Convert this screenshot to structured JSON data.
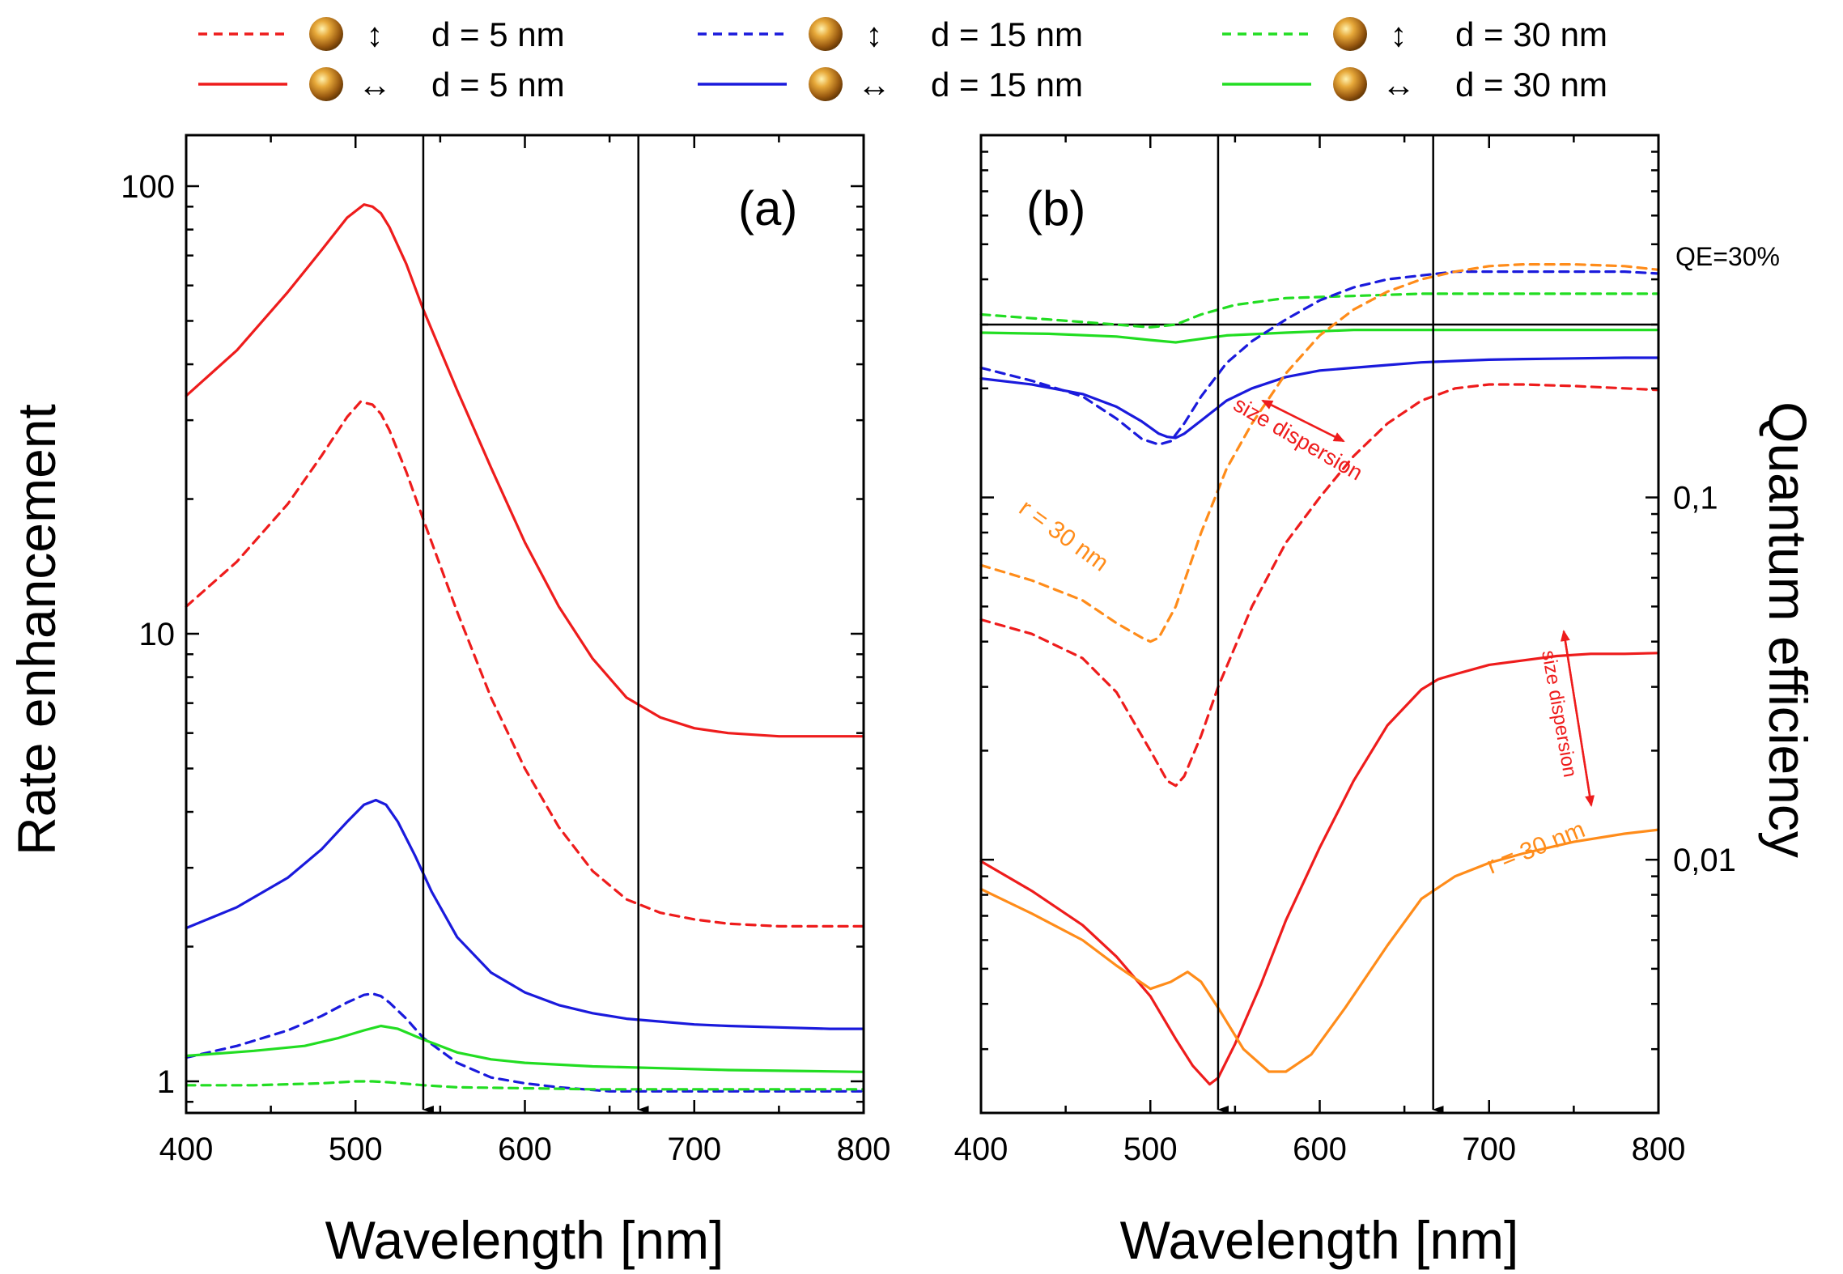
{
  "legend": {
    "entries": [
      {
        "series_id": "perp5",
        "orientation_symbol": "↕",
        "label": "d = 5 nm"
      },
      {
        "series_id": "perp15",
        "orientation_symbol": "↕",
        "label": "d = 15 nm"
      },
      {
        "series_id": "perp30",
        "orientation_symbol": "↕",
        "label": "d = 30 nm"
      },
      {
        "series_id": "par5",
        "orientation_symbol": "↔",
        "label": "d = 5 nm"
      },
      {
        "series_id": "par15",
        "orientation_symbol": "↔",
        "label": "d = 15 nm"
      },
      {
        "series_id": "par30",
        "orientation_symbol": "↔",
        "label": "d = 30 nm"
      }
    ],
    "icon": "gold-nanosphere-icon"
  },
  "colors": {
    "red": "#ee1c1c",
    "blue": "#1a1adc",
    "green": "#22dd22",
    "orange": "#ff8c1a",
    "black": "#000000"
  },
  "chart_data": [
    {
      "type": "line",
      "panel_label": "(a)",
      "xlabel": "Wavelength [nm]",
      "ylabel": "Rate enhancement",
      "xlim": [
        400,
        800
      ],
      "ylim": [
        0.85,
        130
      ],
      "yscale": "log",
      "x_ticks": [
        400,
        500,
        600,
        700,
        800
      ],
      "y_ticks": [
        {
          "value": 1,
          "label": "1"
        },
        {
          "value": 10,
          "label": "10"
        },
        {
          "value": 100,
          "label": "100"
        }
      ],
      "vertical_arrows_at": [
        540,
        667
      ],
      "series": [
        {
          "id": "par5",
          "name": "↔ d = 5 nm",
          "color": "#ee1c1c",
          "dash": false,
          "x": [
            400,
            430,
            460,
            480,
            495,
            505,
            510,
            515,
            520,
            530,
            540,
            560,
            580,
            600,
            620,
            640,
            660,
            680,
            700,
            720,
            750,
            780,
            800
          ],
          "y": [
            34,
            43,
            58,
            72,
            85,
            91,
            90,
            87,
            81,
            67,
            53,
            35,
            23.5,
            16,
            11.5,
            8.8,
            7.2,
            6.5,
            6.15,
            6.0,
            5.9,
            5.9,
            5.9
          ]
        },
        {
          "id": "perp5",
          "name": "↕ d = 5 nm",
          "color": "#ee1c1c",
          "dash": true,
          "x": [
            400,
            430,
            460,
            480,
            495,
            503,
            510,
            515,
            520,
            530,
            540,
            560,
            580,
            600,
            620,
            640,
            660,
            680,
            700,
            720,
            750,
            780,
            800
          ],
          "y": [
            11.5,
            14.5,
            19.5,
            25,
            30.5,
            33,
            32.5,
            31,
            28.5,
            23,
            18,
            11.2,
            7.2,
            5.0,
            3.7,
            2.95,
            2.55,
            2.38,
            2.3,
            2.25,
            2.22,
            2.22,
            2.22
          ]
        },
        {
          "id": "par15",
          "name": "↔ d = 15 nm",
          "color": "#1a1adc",
          "dash": false,
          "x": [
            400,
            430,
            460,
            480,
            495,
            505,
            512,
            518,
            525,
            535,
            545,
            560,
            580,
            600,
            620,
            640,
            660,
            680,
            700,
            720,
            750,
            780,
            800
          ],
          "y": [
            2.2,
            2.45,
            2.85,
            3.3,
            3.8,
            4.15,
            4.25,
            4.15,
            3.8,
            3.2,
            2.65,
            2.1,
            1.75,
            1.58,
            1.48,
            1.42,
            1.38,
            1.36,
            1.34,
            1.33,
            1.32,
            1.31,
            1.31
          ]
        },
        {
          "id": "perp15",
          "name": "↕ d = 15 nm",
          "color": "#1a1adc",
          "dash": true,
          "x": [
            400,
            430,
            460,
            480,
            495,
            505,
            510,
            515,
            520,
            530,
            540,
            560,
            580,
            600,
            620,
            650,
            680,
            720,
            760,
            800
          ],
          "y": [
            1.13,
            1.2,
            1.3,
            1.4,
            1.5,
            1.56,
            1.57,
            1.55,
            1.5,
            1.38,
            1.25,
            1.1,
            1.02,
            0.99,
            0.97,
            0.95,
            0.95,
            0.95,
            0.95,
            0.95
          ]
        },
        {
          "id": "par30",
          "name": "↔ d = 30 nm",
          "color": "#22dd22",
          "dash": false,
          "x": [
            400,
            440,
            470,
            490,
            505,
            515,
            525,
            540,
            560,
            580,
            600,
            640,
            680,
            720,
            760,
            800
          ],
          "y": [
            1.14,
            1.17,
            1.2,
            1.25,
            1.3,
            1.33,
            1.31,
            1.24,
            1.16,
            1.12,
            1.1,
            1.08,
            1.07,
            1.06,
            1.055,
            1.05
          ]
        },
        {
          "id": "perp30",
          "name": "↕ d = 30 nm",
          "color": "#22dd22",
          "dash": true,
          "x": [
            400,
            440,
            480,
            500,
            510,
            520,
            540,
            560,
            600,
            640,
            680,
            720,
            760,
            800
          ],
          "y": [
            0.98,
            0.98,
            0.99,
            1.0,
            1.0,
            0.995,
            0.98,
            0.97,
            0.965,
            0.96,
            0.96,
            0.96,
            0.96,
            0.96
          ]
        }
      ]
    },
    {
      "type": "line",
      "panel_label": "(b)",
      "xlabel": "Wavelength [nm]",
      "ylabel": "Quantum efficiency",
      "xlim": [
        400,
        800
      ],
      "ylim": [
        0.002,
        1.0
      ],
      "yscale": "log",
      "x_ticks": [
        400,
        500,
        600,
        700,
        800
      ],
      "y_ticks": [
        {
          "value": 0.01,
          "label": "0,01"
        },
        {
          "value": 0.1,
          "label": "0,1"
        }
      ],
      "vertical_arrows_at": [
        540,
        667
      ],
      "reference_line": {
        "value": 0.3,
        "label": "QE=30%"
      },
      "annotations": [
        {
          "text": "size dispersion",
          "color": "#ee1c1c"
        },
        {
          "text": "size dispersion",
          "color": "#ee1c1c"
        },
        {
          "text": "r = 30 nm",
          "color": "#ff8c1a"
        },
        {
          "text": "r = 30 nm",
          "color": "#ff8c1a"
        }
      ],
      "series": [
        {
          "id": "perp30",
          "name": "↕ d = 30 nm",
          "color": "#22dd22",
          "dash": true,
          "x": [
            400,
            440,
            480,
            500,
            515,
            530,
            550,
            580,
            620,
            660,
            700,
            750,
            800
          ],
          "y": [
            0.32,
            0.31,
            0.3,
            0.295,
            0.3,
            0.32,
            0.34,
            0.355,
            0.36,
            0.365,
            0.365,
            0.365,
            0.365
          ]
        },
        {
          "id": "par30",
          "name": "↔ d = 30 nm",
          "color": "#22dd22",
          "dash": false,
          "x": [
            400,
            440,
            480,
            500,
            515,
            525,
            545,
            580,
            620,
            660,
            700,
            750,
            800
          ],
          "y": [
            0.285,
            0.283,
            0.278,
            0.272,
            0.268,
            0.272,
            0.28,
            0.285,
            0.29,
            0.29,
            0.29,
            0.29,
            0.29
          ]
        },
        {
          "id": "perp15",
          "name": "↕ d = 15 nm",
          "color": "#1a1adc",
          "dash": true,
          "x": [
            400,
            430,
            460,
            480,
            495,
            505,
            512,
            520,
            530,
            545,
            560,
            580,
            600,
            620,
            640,
            660,
            680,
            700,
            720,
            750,
            780,
            800
          ],
          "y": [
            0.228,
            0.21,
            0.19,
            0.165,
            0.145,
            0.14,
            0.143,
            0.16,
            0.19,
            0.235,
            0.27,
            0.31,
            0.35,
            0.38,
            0.4,
            0.41,
            0.42,
            0.42,
            0.42,
            0.42,
            0.42,
            0.415
          ]
        },
        {
          "id": "par15",
          "name": "↔ d = 15 nm",
          "color": "#1a1adc",
          "dash": false,
          "x": [
            400,
            430,
            460,
            480,
            495,
            505,
            510,
            515,
            520,
            530,
            545,
            560,
            580,
            600,
            620,
            640,
            660,
            680,
            700,
            720,
            750,
            780,
            800
          ],
          "y": [
            0.213,
            0.205,
            0.193,
            0.178,
            0.162,
            0.15,
            0.147,
            0.146,
            0.15,
            0.163,
            0.185,
            0.2,
            0.215,
            0.224,
            0.228,
            0.232,
            0.236,
            0.238,
            0.24,
            0.241,
            0.242,
            0.243,
            0.243
          ]
        },
        {
          "id": "perp5",
          "name": "↕ d = 5 nm",
          "color": "#ee1c1c",
          "dash": true,
          "x": [
            400,
            430,
            460,
            480,
            500,
            510,
            515,
            520,
            530,
            540,
            560,
            580,
            600,
            620,
            640,
            660,
            680,
            700,
            720,
            750,
            780,
            800
          ],
          "y": [
            0.046,
            0.042,
            0.036,
            0.029,
            0.02,
            0.0165,
            0.016,
            0.017,
            0.022,
            0.03,
            0.05,
            0.075,
            0.1,
            0.13,
            0.16,
            0.185,
            0.2,
            0.205,
            0.205,
            0.203,
            0.2,
            0.198
          ]
        },
        {
          "id": "r30dash",
          "name": "r = 30 nm",
          "color": "#ff8c1a",
          "dash": true,
          "x": [
            400,
            430,
            460,
            480,
            495,
            500,
            505,
            515,
            530,
            545,
            560,
            580,
            600,
            620,
            640,
            660,
            680,
            700,
            720,
            750,
            780,
            800
          ],
          "y": [
            0.065,
            0.059,
            0.052,
            0.045,
            0.041,
            0.04,
            0.041,
            0.05,
            0.08,
            0.12,
            0.16,
            0.22,
            0.28,
            0.33,
            0.37,
            0.4,
            0.42,
            0.435,
            0.44,
            0.44,
            0.435,
            0.425
          ]
        },
        {
          "id": "par5",
          "name": "↔ d = 5 nm",
          "color": "#ee1c1c",
          "dash": false,
          "x": [
            400,
            430,
            460,
            480,
            500,
            515,
            525,
            535,
            540,
            550,
            565,
            580,
            600,
            620,
            640,
            660,
            670,
            680,
            700,
            720,
            740,
            760,
            780,
            800
          ],
          "y": [
            0.0099,
            0.0082,
            0.0066,
            0.0054,
            0.0042,
            0.0032,
            0.0027,
            0.0024,
            0.0025,
            0.0031,
            0.0045,
            0.0068,
            0.0108,
            0.0165,
            0.0235,
            0.0295,
            0.0315,
            0.0325,
            0.0345,
            0.0355,
            0.0365,
            0.037,
            0.037,
            0.0372
          ]
        },
        {
          "id": "r30solid",
          "name": "r = 30 nm",
          "color": "#ff8c1a",
          "dash": false,
          "x": [
            400,
            430,
            460,
            480,
            500,
            512,
            522,
            530,
            540,
            555,
            570,
            580,
            595,
            615,
            640,
            660,
            680,
            700,
            720,
            750,
            780,
            800
          ],
          "y": [
            0.0083,
            0.0071,
            0.006,
            0.0051,
            0.0044,
            0.0046,
            0.0049,
            0.0046,
            0.0039,
            0.003,
            0.0026,
            0.0026,
            0.0029,
            0.0039,
            0.0058,
            0.0078,
            0.009,
            0.0098,
            0.0104,
            0.0112,
            0.0118,
            0.0121
          ]
        }
      ]
    }
  ]
}
